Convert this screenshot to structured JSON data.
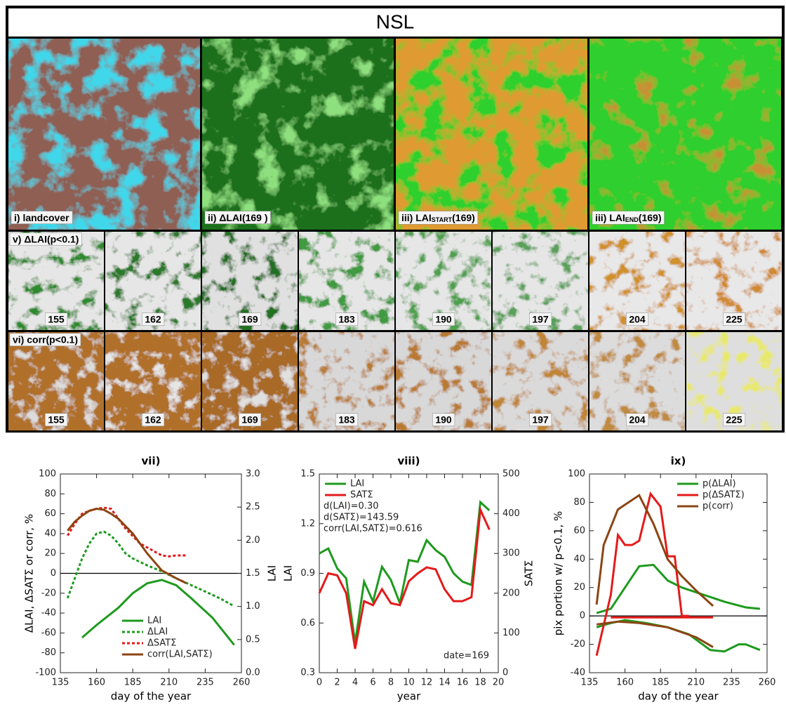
{
  "header": {
    "title": "NSL"
  },
  "image_panels": {
    "maps": [
      {
        "label": "i) landcover"
      },
      {
        "label": "ii) ΔLAI(169 )"
      },
      {
        "label": "iii) LAI",
        "sub": "START",
        "suffix": "(169)"
      },
      {
        "label": "iii) LAI",
        "sub": "END",
        "suffix": "(169)"
      }
    ],
    "rows": [
      {
        "label": "v) ΔLAI(p<0.1)",
        "days": [
          155,
          162,
          169,
          183,
          190,
          197,
          204,
          225
        ]
      },
      {
        "label": "vi) corr(p<0.1)",
        "days": [
          155,
          162,
          169,
          183,
          190,
          197,
          204,
          225
        ]
      }
    ]
  },
  "chart_data": [
    {
      "type": "line",
      "title": "vii)",
      "xlabel": "day of the year",
      "ylabel": "ΔLAI, ΔSATΣ or corr, %",
      "y2label": "LAI",
      "xlim": [
        135,
        260
      ],
      "xticks": [
        135,
        160,
        185,
        210,
        235,
        260
      ],
      "ylim": [
        -100,
        100
      ],
      "yticks": [
        -100,
        -80,
        -60,
        -40,
        -20,
        0,
        20,
        40,
        60,
        80,
        100
      ],
      "y2lim": [
        0,
        3
      ],
      "y2ticks": [
        {
          "value": 0,
          "label": "0.0"
        },
        0.5,
        {
          "value": 1,
          "label": "1.0"
        },
        1.5,
        {
          "value": 2,
          "label": "2.0"
        },
        2.5,
        {
          "value": 3,
          "label": "3.0"
        }
      ],
      "zero_line": true,
      "legend": "lower right",
      "series": [
        {
          "name": "LAI",
          "color": "#1e9a1e",
          "style": "solid",
          "axis": "y2",
          "x": [
            150,
            160,
            175,
            185,
            195,
            205,
            215,
            225,
            240,
            255
          ],
          "values": [
            0.53,
            0.72,
            0.98,
            1.2,
            1.35,
            1.4,
            1.32,
            1.13,
            0.83,
            0.42
          ]
        },
        {
          "name": "ΔLAI",
          "color": "#1e9a1e",
          "style": "dotted",
          "x": [
            140,
            145,
            150,
            155,
            160,
            165,
            170,
            175,
            180,
            185,
            195,
            205,
            215,
            230,
            245,
            255
          ],
          "values": [
            -25,
            -5,
            15,
            30,
            40,
            42,
            38,
            30,
            20,
            15,
            8,
            2,
            -5,
            -15,
            -25,
            -33
          ]
        },
        {
          "name": "ΔSATΣ",
          "color": "#e41a1a",
          "style": "dotted",
          "x": [
            140,
            145,
            150,
            155,
            160,
            165,
            170,
            175,
            180,
            190,
            200,
            205,
            210,
            215,
            222
          ],
          "values": [
            38,
            50,
            60,
            63,
            65,
            66,
            65,
            55,
            45,
            30,
            22,
            18,
            17,
            18,
            18
          ]
        },
        {
          "name": "corr(LAI,SATΣ)",
          "color": "#8b4513",
          "style": "solid",
          "x": [
            140,
            145,
            150,
            155,
            160,
            165,
            170,
            175,
            185,
            195,
            205,
            215,
            222
          ],
          "values": [
            43,
            52,
            58,
            63,
            65,
            64,
            60,
            55,
            40,
            20,
            3,
            -5,
            -10
          ]
        }
      ]
    },
    {
      "type": "line",
      "title": "viii)",
      "xlabel": "year",
      "ylabel": "LAI",
      "y2label": "SATΣ",
      "xlim": [
        0,
        20
      ],
      "xticks": [
        0,
        2,
        4,
        6,
        8,
        10,
        12,
        14,
        16,
        18,
        20
      ],
      "ylim": [
        0.3,
        1.5
      ],
      "yticks": [
        0.3,
        0.6,
        0.9,
        1.2,
        1.5
      ],
      "y2lim": [
        0,
        500
      ],
      "y2ticks": [
        0,
        100,
        200,
        300,
        400,
        500
      ],
      "legend": "upper left",
      "annotations": [
        "d(LAI)=0.30",
        "d(SATΣ)=143.59",
        "corr(LAI,SATΣ)=0.616",
        "date=169"
      ],
      "series": [
        {
          "name": "LAI",
          "color": "#1e9a1e",
          "style": "solid",
          "x": [
            0,
            1,
            2,
            3,
            4,
            5,
            6,
            7,
            8,
            9,
            10,
            11,
            12,
            13,
            14,
            15,
            16,
            17,
            18,
            19
          ],
          "values": [
            1.02,
            1.05,
            0.93,
            0.87,
            0.48,
            0.85,
            0.73,
            0.94,
            0.86,
            0.72,
            0.98,
            0.97,
            1.1,
            1.04,
            1.0,
            0.9,
            0.85,
            0.83,
            1.33,
            1.28
          ]
        },
        {
          "name": "SATΣ",
          "color": "#e41a1a",
          "style": "solid",
          "axis": "y2",
          "x": [
            0,
            1,
            2,
            3,
            4,
            5,
            6,
            7,
            8,
            9,
            10,
            11,
            12,
            13,
            14,
            15,
            16,
            17,
            18,
            19
          ],
          "values": [
            200,
            250,
            245,
            200,
            60,
            180,
            170,
            210,
            175,
            170,
            230,
            250,
            265,
            260,
            210,
            180,
            180,
            190,
            410,
            360
          ]
        }
      ]
    },
    {
      "type": "line",
      "title": "ix)",
      "xlabel": "day of the year",
      "ylabel": "pix portion w/ p<0.1, %",
      "xlim": [
        135,
        260
      ],
      "xticks": [
        135,
        160,
        185,
        210,
        235,
        260
      ],
      "ylim": [
        -40,
        100
      ],
      "yticks": [
        -40,
        -20,
        0,
        20,
        40,
        60,
        80,
        100
      ],
      "zero_line": true,
      "legend": "upper right",
      "series": [
        {
          "name": "p(ΔLAI)",
          "color": "#1e9a1e",
          "style": "solid",
          "x": [
            140,
            150,
            160,
            170,
            180,
            190,
            200,
            215,
            230,
            245,
            255,
            null,
            140,
            150,
            160,
            175,
            190,
            205,
            220,
            230,
            240,
            245,
            255
          ],
          "values": [
            2,
            5,
            20,
            35,
            36,
            25,
            20,
            15,
            10,
            6,
            5,
            null,
            -8,
            -5,
            -3,
            -5,
            -8,
            -13,
            -24,
            -25,
            -20,
            -20,
            -24
          ]
        },
        {
          "name": "p(ΔSATΣ)",
          "color": "#e41a1a",
          "style": "solid",
          "x": [
            140,
            150,
            155,
            160,
            165,
            170,
            178,
            185,
            190,
            195,
            200,
            205,
            null,
            150,
            222
          ],
          "values": [
            -28,
            15,
            57,
            50,
            50,
            53,
            86,
            77,
            42,
            42,
            0,
            0,
            null,
            -1,
            -1
          ]
        },
        {
          "name": "p(corr)",
          "color": "#8b4513",
          "style": "solid",
          "x": [
            140,
            145,
            155,
            170,
            180,
            190,
            200,
            210,
            222,
            null,
            140,
            155,
            170,
            190,
            210,
            222
          ],
          "values": [
            8,
            50,
            75,
            85,
            65,
            40,
            28,
            18,
            7,
            null,
            -6,
            -4,
            -5,
            -8,
            -15,
            -22
          ]
        }
      ]
    }
  ]
}
